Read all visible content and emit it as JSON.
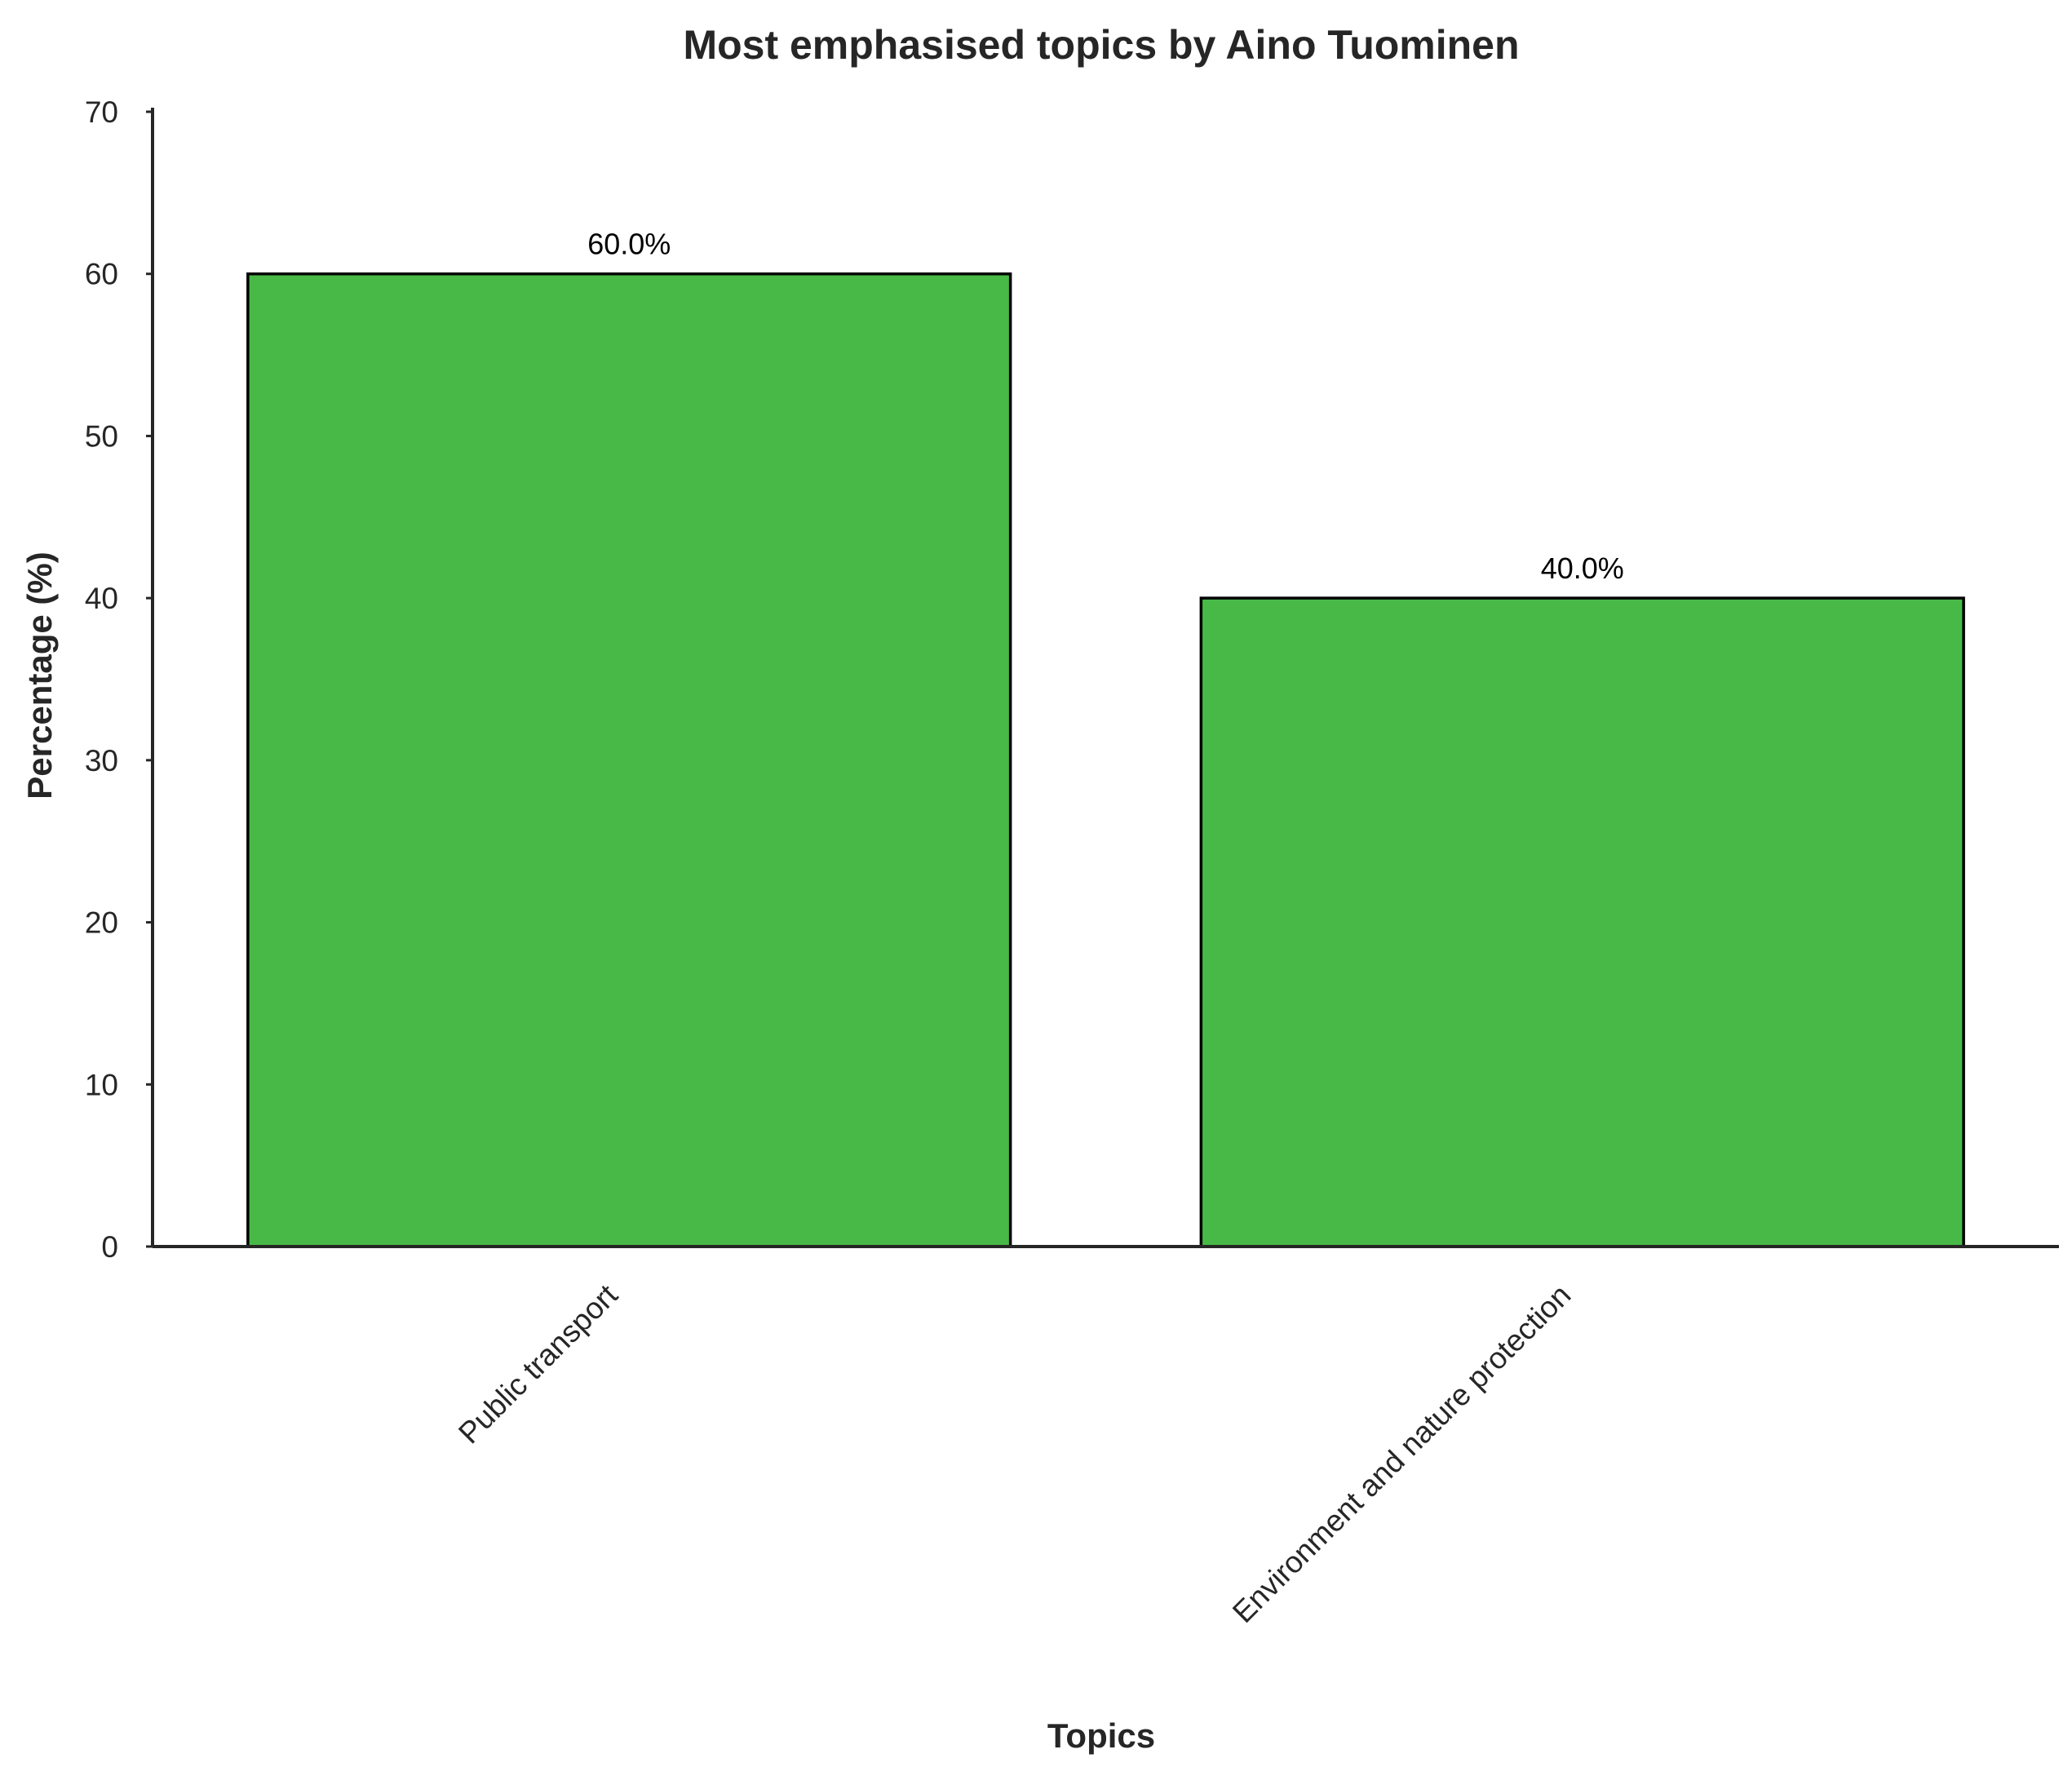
{
  "chart_data": {
    "type": "bar",
    "title": "Most emphasised topics by Aino Tuominen",
    "xlabel": "Topics",
    "ylabel": "Percentage (%)",
    "categories": [
      "Public transport",
      "Environment and nature protection"
    ],
    "values": [
      60.0,
      40.0
    ],
    "value_labels": [
      "60.0%",
      "40.0%"
    ],
    "ylim": [
      0,
      70
    ],
    "yticks": [
      0,
      10,
      20,
      30,
      40,
      50,
      60,
      70
    ],
    "grid": false,
    "legend": "none",
    "bar_color": "#48B947",
    "bar_edge_color": "#000000",
    "category_label_rotation": 45
  }
}
